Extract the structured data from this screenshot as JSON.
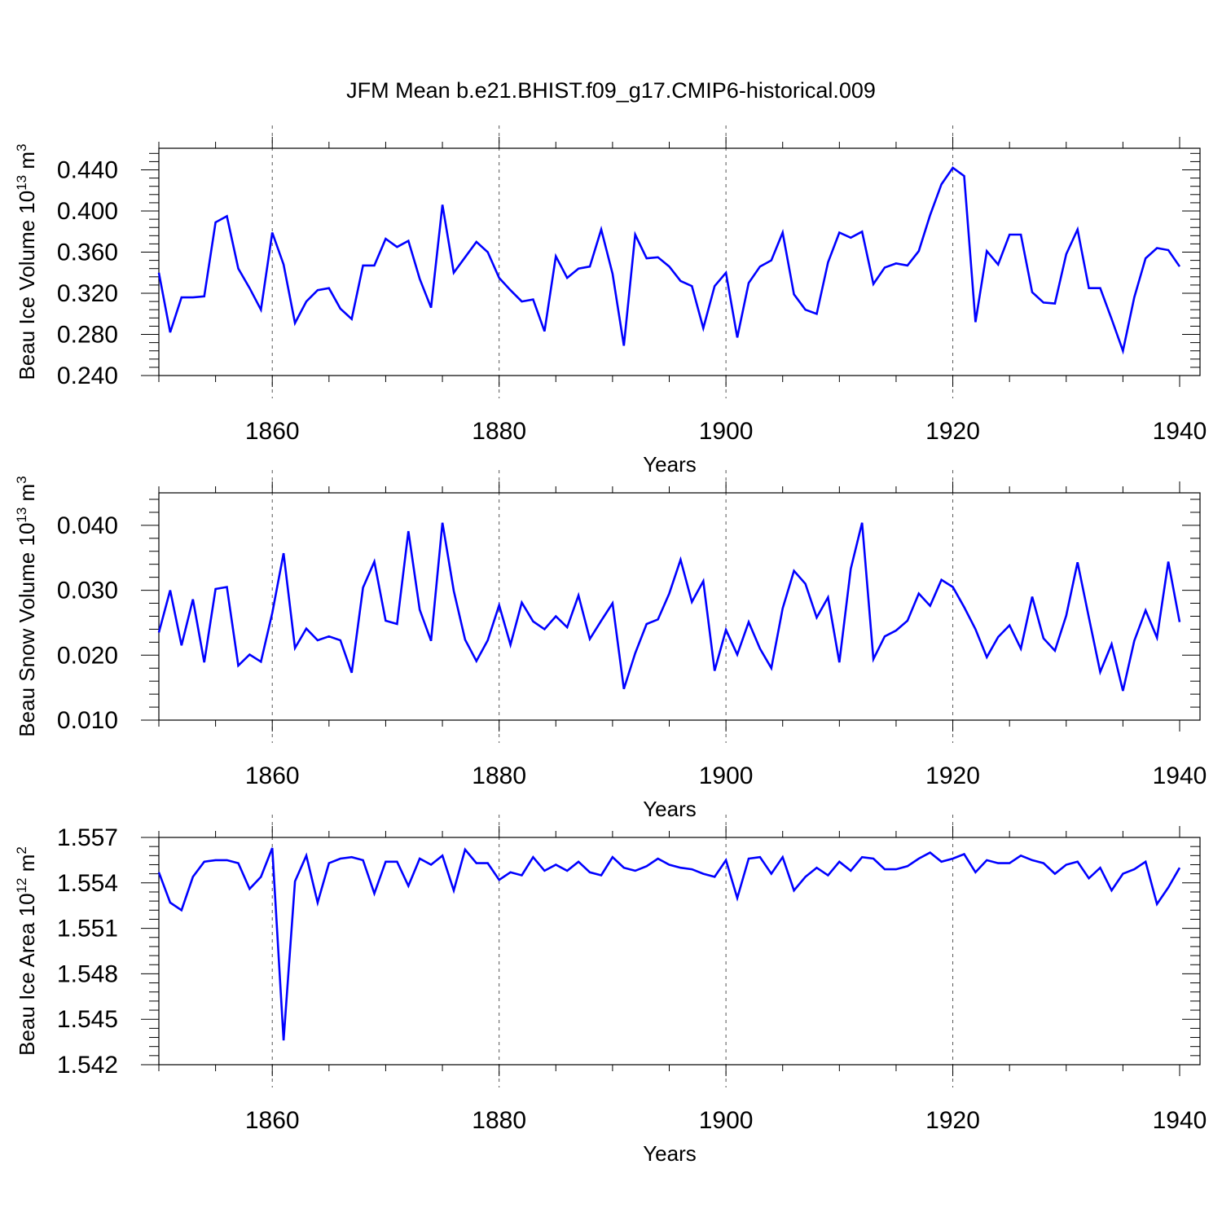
{
  "title": "JFM Mean b.e21.BHIST.f09_g17.CMIP6-historical.009",
  "colors": {
    "line": "#0000ff",
    "axis": "#000000",
    "grid": "#555555"
  },
  "chart_data": [
    {
      "type": "line",
      "ylabel_main": "Beau Ice Volume 10",
      "ylabel_sup1": "13",
      "ylabel_mid": " m",
      "ylabel_sup2": "3",
      "xlabel": "Years",
      "xlim": [
        1850,
        1940
      ],
      "ylim": [
        0.24,
        0.461
      ],
      "yticks": [
        0.24,
        0.28,
        0.32,
        0.36,
        0.4,
        0.44
      ],
      "ytick_labels": [
        "0.240",
        "0.280",
        "0.320",
        "0.360",
        "0.400",
        "0.440"
      ],
      "xticks": [
        1860,
        1880,
        1900,
        1920,
        1940
      ],
      "xtick_labels": [
        "1860",
        "1880",
        "1900",
        "1920",
        "1940"
      ],
      "grid_x": [
        1860,
        1880,
        1900,
        1920
      ],
      "x": [
        1850,
        1851,
        1852,
        1853,
        1854,
        1855,
        1856,
        1857,
        1858,
        1859,
        1860,
        1861,
        1862,
        1863,
        1864,
        1865,
        1866,
        1867,
        1868,
        1869,
        1870,
        1871,
        1872,
        1873,
        1874,
        1875,
        1876,
        1877,
        1878,
        1879,
        1880,
        1881,
        1882,
        1883,
        1884,
        1885,
        1886,
        1887,
        1888,
        1889,
        1890,
        1891,
        1892,
        1893,
        1894,
        1895,
        1896,
        1897,
        1898,
        1899,
        1900,
        1901,
        1902,
        1903,
        1904,
        1905,
        1906,
        1907,
        1908,
        1909,
        1910,
        1911,
        1912,
        1913,
        1914,
        1915,
        1916,
        1917,
        1918,
        1919,
        1920,
        1921,
        1922,
        1923,
        1924,
        1925,
        1926,
        1927,
        1928,
        1929,
        1930,
        1931,
        1932,
        1933,
        1934,
        1935,
        1936,
        1937,
        1938,
        1939,
        1940
      ],
      "values": [
        0.34,
        0.282,
        0.316,
        0.316,
        0.317,
        0.389,
        0.395,
        0.344,
        0.325,
        0.304,
        0.379,
        0.348,
        0.291,
        0.312,
        0.323,
        0.325,
        0.305,
        0.295,
        0.347,
        0.347,
        0.373,
        0.365,
        0.371,
        0.334,
        0.306,
        0.406,
        0.34,
        0.355,
        0.37,
        0.36,
        0.335,
        0.323,
        0.312,
        0.314,
        0.283,
        0.356,
        0.335,
        0.344,
        0.346,
        0.382,
        0.339,
        0.269,
        0.377,
        0.354,
        0.355,
        0.346,
        0.332,
        0.327,
        0.286,
        0.327,
        0.34,
        0.277,
        0.33,
        0.346,
        0.352,
        0.379,
        0.319,
        0.304,
        0.3,
        0.35,
        0.379,
        0.374,
        0.38,
        0.329,
        0.345,
        0.349,
        0.347,
        0.361,
        0.396,
        0.426,
        0.442,
        0.434,
        0.292,
        0.361,
        0.348,
        0.377,
        0.377,
        0.321,
        0.311,
        0.31,
        0.358,
        0.382,
        0.325,
        0.325,
        0.295,
        0.264,
        0.316,
        0.354,
        0.364,
        0.362,
        0.346
      ]
    },
    {
      "type": "line",
      "ylabel_main": "Beau Snow Volume 10",
      "ylabel_sup1": "13",
      "ylabel_mid": " m",
      "ylabel_sup2": "3",
      "xlabel": "Years",
      "xlim": [
        1850,
        1940
      ],
      "ylim": [
        0.01,
        0.045
      ],
      "yticks": [
        0.01,
        0.02,
        0.03,
        0.04
      ],
      "ytick_labels": [
        "0.010",
        "0.020",
        "0.030",
        "0.040"
      ],
      "xticks": [
        1860,
        1880,
        1900,
        1920,
        1940
      ],
      "xtick_labels": [
        "1860",
        "1880",
        "1900",
        "1920",
        "1940"
      ],
      "grid_x": [
        1860,
        1880,
        1900,
        1920
      ],
      "x": [
        1850,
        1851,
        1852,
        1853,
        1854,
        1855,
        1856,
        1857,
        1858,
        1859,
        1860,
        1861,
        1862,
        1863,
        1864,
        1865,
        1866,
        1867,
        1868,
        1869,
        1870,
        1871,
        1872,
        1873,
        1874,
        1875,
        1876,
        1877,
        1878,
        1879,
        1880,
        1881,
        1882,
        1883,
        1884,
        1885,
        1886,
        1887,
        1888,
        1889,
        1890,
        1891,
        1892,
        1893,
        1894,
        1895,
        1896,
        1897,
        1898,
        1899,
        1900,
        1901,
        1902,
        1903,
        1904,
        1905,
        1906,
        1907,
        1908,
        1909,
        1910,
        1911,
        1912,
        1913,
        1914,
        1915,
        1916,
        1917,
        1918,
        1919,
        1920,
        1921,
        1922,
        1923,
        1924,
        1925,
        1926,
        1927,
        1928,
        1929,
        1930,
        1931,
        1932,
        1933,
        1934,
        1935,
        1936,
        1937,
        1938,
        1939,
        1940
      ],
      "values": [
        0.0235,
        0.03,
        0.0215,
        0.0286,
        0.0189,
        0.0302,
        0.0305,
        0.0184,
        0.0201,
        0.019,
        0.0265,
        0.0357,
        0.0211,
        0.0241,
        0.0223,
        0.0229,
        0.0223,
        0.0173,
        0.0304,
        0.0344,
        0.0253,
        0.0248,
        0.0391,
        0.027,
        0.0222,
        0.0404,
        0.0299,
        0.0224,
        0.0191,
        0.0223,
        0.0277,
        0.0216,
        0.0281,
        0.0252,
        0.024,
        0.026,
        0.0243,
        0.0292,
        0.0225,
        0.0253,
        0.028,
        0.0148,
        0.0203,
        0.0248,
        0.0255,
        0.0295,
        0.0347,
        0.0282,
        0.0314,
        0.0176,
        0.0239,
        0.0201,
        0.0251,
        0.021,
        0.018,
        0.0272,
        0.033,
        0.031,
        0.0258,
        0.0289,
        0.0189,
        0.0333,
        0.0404,
        0.0194,
        0.0229,
        0.0238,
        0.0253,
        0.0295,
        0.0276,
        0.0316,
        0.0305,
        0.0274,
        0.024,
        0.0197,
        0.0228,
        0.0246,
        0.021,
        0.029,
        0.0226,
        0.0207,
        0.0261,
        0.0343,
        0.0258,
        0.0174,
        0.0217,
        0.0145,
        0.0222,
        0.0269,
        0.0227,
        0.0344,
        0.0251
      ]
    },
    {
      "type": "line",
      "ylabel_main": "Beau Ice Area 10",
      "ylabel_sup1": "12",
      "ylabel_mid": " m",
      "ylabel_sup2": "2",
      "xlabel": "Years",
      "xlim": [
        1850,
        1940
      ],
      "ylim": [
        1.542,
        1.557
      ],
      "yticks": [
        1.542,
        1.545,
        1.548,
        1.551,
        1.554,
        1.557
      ],
      "ytick_labels": [
        "1.542",
        "1.545",
        "1.548",
        "1.551",
        "1.554",
        "1.557"
      ],
      "xticks": [
        1860,
        1880,
        1900,
        1920,
        1940
      ],
      "xtick_labels": [
        "1860",
        "1880",
        "1900",
        "1920",
        "1940"
      ],
      "grid_x": [
        1860,
        1880,
        1900,
        1920
      ],
      "x": [
        1850,
        1851,
        1852,
        1853,
        1854,
        1855,
        1856,
        1857,
        1858,
        1859,
        1860,
        1861,
        1862,
        1863,
        1864,
        1865,
        1866,
        1867,
        1868,
        1869,
        1870,
        1871,
        1872,
        1873,
        1874,
        1875,
        1876,
        1877,
        1878,
        1879,
        1880,
        1881,
        1882,
        1883,
        1884,
        1885,
        1886,
        1887,
        1888,
        1889,
        1890,
        1891,
        1892,
        1893,
        1894,
        1895,
        1896,
        1897,
        1898,
        1899,
        1900,
        1901,
        1902,
        1903,
        1904,
        1905,
        1906,
        1907,
        1908,
        1909,
        1910,
        1911,
        1912,
        1913,
        1914,
        1915,
        1916,
        1917,
        1918,
        1919,
        1920,
        1921,
        1922,
        1923,
        1924,
        1925,
        1926,
        1927,
        1928,
        1929,
        1930,
        1931,
        1932,
        1933,
        1934,
        1935,
        1936,
        1937,
        1938,
        1939,
        1940
      ],
      "values": [
        1.5547,
        1.5527,
        1.5522,
        1.5544,
        1.5554,
        1.5555,
        1.5555,
        1.5553,
        1.5536,
        1.5544,
        1.5563,
        1.5436,
        1.5541,
        1.5558,
        1.5527,
        1.5553,
        1.5556,
        1.5557,
        1.5555,
        1.5533,
        1.5554,
        1.5554,
        1.5538,
        1.5556,
        1.5552,
        1.5558,
        1.5535,
        1.5562,
        1.5553,
        1.5553,
        1.5542,
        1.5547,
        1.5545,
        1.5557,
        1.5548,
        1.5552,
        1.5548,
        1.5554,
        1.5547,
        1.5545,
        1.5557,
        1.555,
        1.5548,
        1.5551,
        1.5556,
        1.5552,
        1.555,
        1.5549,
        1.5546,
        1.5544,
        1.5555,
        1.553,
        1.5556,
        1.5557,
        1.5546,
        1.5557,
        1.5535,
        1.5544,
        1.555,
        1.5545,
        1.5554,
        1.5548,
        1.5557,
        1.5556,
        1.5549,
        1.5549,
        1.5551,
        1.5556,
        1.556,
        1.5554,
        1.5556,
        1.5559,
        1.5547,
        1.5555,
        1.5553,
        1.5553,
        1.5558,
        1.5555,
        1.5553,
        1.5546,
        1.5552,
        1.5554,
        1.5543,
        1.555,
        1.5535,
        1.5546,
        1.5549,
        1.5554,
        1.5526,
        1.5537,
        1.555
      ]
    }
  ]
}
